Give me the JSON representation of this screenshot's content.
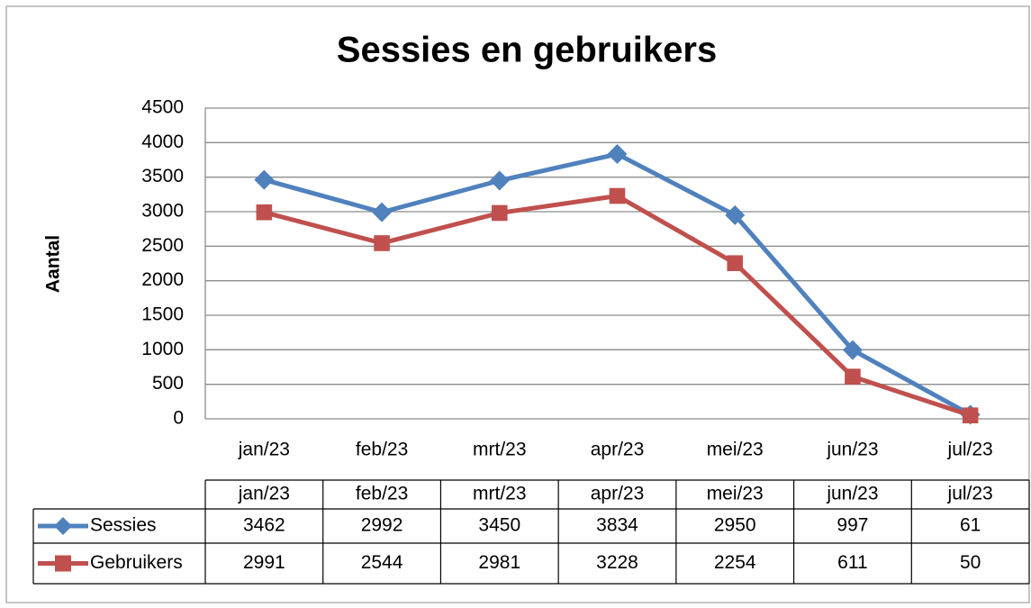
{
  "chart_data": {
    "type": "line",
    "title": "Sessies en gebruikers",
    "y_label": "Aantal",
    "categories": [
      "jan/23",
      "feb/23",
      "mrt/23",
      "apr/23",
      "mei/23",
      "jun/23",
      "jul/23"
    ],
    "series": [
      {
        "name": "Sessies",
        "color": "#4f81bd",
        "marker": "diamond",
        "values": [
          3462,
          2992,
          3450,
          3834,
          2950,
          997,
          61
        ]
      },
      {
        "name": "Gebruikers",
        "color": "#c0504d",
        "marker": "square",
        "values": [
          2991,
          2544,
          2981,
          3228,
          2254,
          611,
          50
        ]
      }
    ],
    "ylim": [
      0,
      4500
    ],
    "yticks": [
      0,
      500,
      1000,
      1500,
      2000,
      2500,
      3000,
      3500,
      4000,
      4500
    ],
    "grid": true,
    "data_table": true
  }
}
